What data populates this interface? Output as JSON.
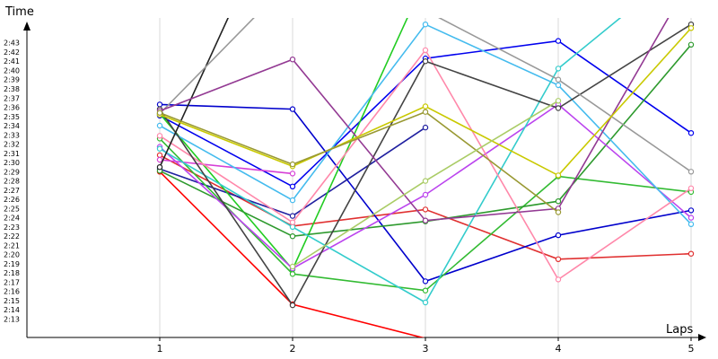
{
  "chart_data": {
    "type": "line",
    "title": "",
    "xlabel": "Laps",
    "ylabel": "Time",
    "x": [
      1,
      2,
      3,
      4,
      5
    ],
    "x_tick_labels": [
      "1",
      "2",
      "3",
      "4",
      "5"
    ],
    "y_tick_labels": [
      "2:13",
      "2:14",
      "2:15",
      "2:16",
      "2:17",
      "2:18",
      "2:19",
      "2:20",
      "2:21",
      "2:22",
      "2:23",
      "2:24",
      "2:25",
      "2:26",
      "2:27",
      "2:28",
      "2:29",
      "2:30",
      "2:31",
      "2:32",
      "2:33",
      "2:34",
      "2:35",
      "2:36",
      "2:37",
      "2:38",
      "2:39",
      "2:40",
      "2:41",
      "2:42",
      "2:43"
    ],
    "y_unit": "seconds",
    "ylim": [
      128,
      168
    ],
    "grid": "vertical",
    "legend": "none",
    "series": [
      {
        "color": "#ff0000",
        "values": [
          149.0,
          134.6,
          130.9,
          null,
          null
        ]
      },
      {
        "color": "#e03030",
        "values": [
          150.8,
          143.1,
          144.9,
          139.5,
          140.1
        ]
      },
      {
        "color": "#0000cc",
        "values": [
          156.3,
          155.8,
          137.1,
          142.1,
          144.8
        ]
      },
      {
        "color": "#0000ee",
        "values": [
          155.1,
          147.4,
          161.3,
          163.2,
          153.2
        ]
      },
      {
        "color": "#2020a0",
        "values": [
          149.3,
          144.2,
          153.8,
          null,
          null
        ]
      },
      {
        "color": "#33bb33",
        "values": [
          152.6,
          137.9,
          136.1,
          148.5,
          146.8
        ]
      },
      {
        "color": "#22cc22",
        "values": [
          155.3,
          138.4,
          170.0,
          null,
          null
        ]
      },
      {
        "color": "#2e9a2e",
        "values": [
          149.1,
          142.0,
          143.6,
          145.8,
          162.8
        ]
      },
      {
        "color": "#d63fd6",
        "values": [
          150.3,
          148.8,
          null,
          null,
          null
        ]
      },
      {
        "color": "#bb44ee",
        "values": [
          151.7,
          138.5,
          146.5,
          156.3,
          144.0
        ]
      },
      {
        "color": "#44bbee",
        "values": [
          154.0,
          145.9,
          165.0,
          158.4,
          143.3
        ]
      },
      {
        "color": "#33cccc",
        "values": [
          151.5,
          143.0,
          134.8,
          160.2,
          172.0
        ]
      },
      {
        "color": "#ff88aa",
        "values": [
          152.9,
          143.5,
          162.2,
          137.3,
          147.2
        ]
      },
      {
        "color": "#444444",
        "values": [
          155.8,
          134.5,
          161.0,
          155.9,
          165.0
        ]
      },
      {
        "color": "#222222",
        "values": [
          149.5,
          181.0,
          null,
          null,
          null
        ]
      },
      {
        "color": "#999999",
        "values": [
          155.3,
          170.0,
          166.5,
          159.0,
          149.0
        ]
      },
      {
        "color": "#933a93",
        "values": [
          155.6,
          161.2,
          143.7,
          145.0,
          170.0
        ]
      },
      {
        "color": "#c9c900",
        "values": [
          155.2,
          149.6,
          156.1,
          148.6,
          164.6
        ]
      },
      {
        "color": "#999933",
        "values": [
          155.4,
          149.8,
          155.5,
          144.6,
          null
        ]
      },
      {
        "color": "#aacc66",
        "values": [
          null,
          138.7,
          148.0,
          156.7,
          null
        ]
      }
    ]
  }
}
